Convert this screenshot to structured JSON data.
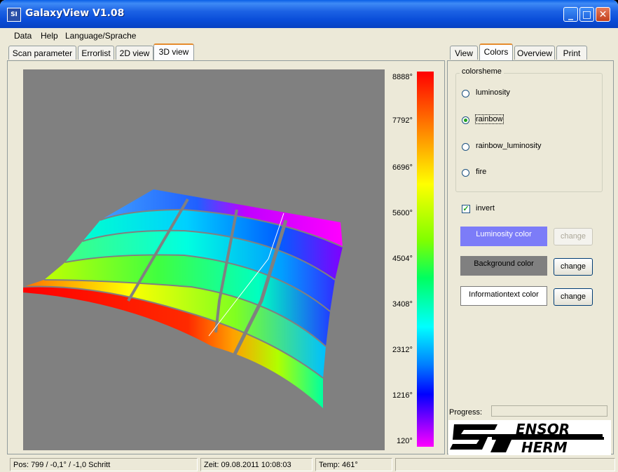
{
  "window": {
    "title": "GalaxyView V1.08",
    "app_icon_text": "SI"
  },
  "titlebar_buttons": {
    "minimize": "_",
    "maximize": "□",
    "close": "✕"
  },
  "menu": [
    "Data",
    "Help",
    "Language/Sprache"
  ],
  "left_tabs": [
    "Scan parameter",
    "Errorlist",
    "2D view",
    "3D view"
  ],
  "left_active_tab": "3D view",
  "right_tabs": [
    "View",
    "Colors",
    "Overview",
    "Print"
  ],
  "right_active_tab": "Colors",
  "color_scale": {
    "labels": [
      "8888°",
      "7792°",
      "6696°",
      "5600°",
      "4504°",
      "3408°",
      "2312°",
      "1216°",
      "120°"
    ]
  },
  "colorscheme": {
    "title": "colorsheme",
    "options": [
      "luminosity",
      "rainbow",
      "rainbow_luminosity",
      "fire"
    ],
    "selected": "rainbow"
  },
  "invert": {
    "label": "invert",
    "checked": true
  },
  "colors": {
    "luminosity": {
      "label": "Luminosity color",
      "swatch": "#7C7CF8",
      "button": "change",
      "enabled": false
    },
    "background": {
      "label": "Background color",
      "swatch": "#808080",
      "button": "change",
      "enabled": true
    },
    "infotext": {
      "label": "Informationtext color",
      "swatch": "#FFFFFF",
      "button": "change",
      "enabled": true
    }
  },
  "progress": {
    "label": "Progress:",
    "value": 0
  },
  "logo": {
    "line1": "ENSOR",
    "line2": "HERM",
    "big_s": "S",
    "big_t": "T"
  },
  "status": {
    "pos": "Pos: 799  /  -0,1°  /  -1,0 Schritt",
    "zeit": "Zeit: 09.08.2011 10:08:03",
    "temp": "Temp: 461°"
  },
  "surface_colors": {
    "rows": [
      "#ff2a00",
      "#ffff00",
      "#40ff40",
      "#00ffc0",
      "#00a0ff",
      "#ff00ff"
    ]
  }
}
